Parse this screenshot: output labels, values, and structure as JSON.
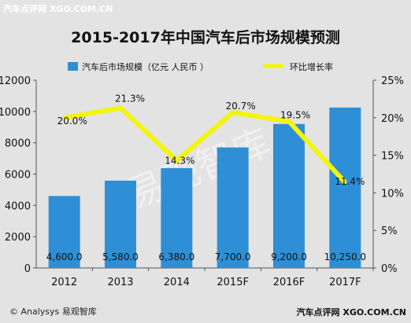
{
  "watermark_top": "汽车点评网 XGO.COM.CN",
  "watermark_center": "易观智库",
  "footer_left": "© Analysys 易观智库",
  "footer_right": "汽车点评网 XGO.COM.CN",
  "chart_data": {
    "type": "bar",
    "title": "2015-2017年中国汽车后市场规模预测",
    "categories": [
      "2012",
      "2013",
      "2014",
      "2015F",
      "2016F",
      "2017F"
    ],
    "series": [
      {
        "name": "汽车后市场规模（亿元 人民币 ）",
        "type": "bar",
        "axis": "left",
        "values": [
          4600.0,
          5580.0,
          6380.0,
          7700.0,
          9200.0,
          10250.0
        ],
        "labels": [
          "4,600.0",
          "5,580.0",
          "6,380.0",
          "7,700.0",
          "9,200.0",
          "10,250.0"
        ],
        "color": "#2e8fd6"
      },
      {
        "name": "环比增长率",
        "type": "line",
        "axis": "right",
        "values": [
          20.0,
          21.3,
          14.3,
          20.7,
          19.5,
          11.4
        ],
        "labels": [
          "20.0%",
          "21.3%",
          "14.3%",
          "20.7%",
          "19.5%",
          "11.4%"
        ],
        "color": "#f3f50a"
      }
    ],
    "ylim_left": [
      0,
      12000
    ],
    "yticks_left": [
      "0",
      "2000",
      "4000",
      "6000",
      "8000",
      "10000",
      "12000"
    ],
    "ylim_right": [
      0,
      25
    ],
    "yticks_right": [
      "0%",
      "5%",
      "10%",
      "15%",
      "20%",
      "25%"
    ],
    "grid": false,
    "legend_position": "top"
  }
}
